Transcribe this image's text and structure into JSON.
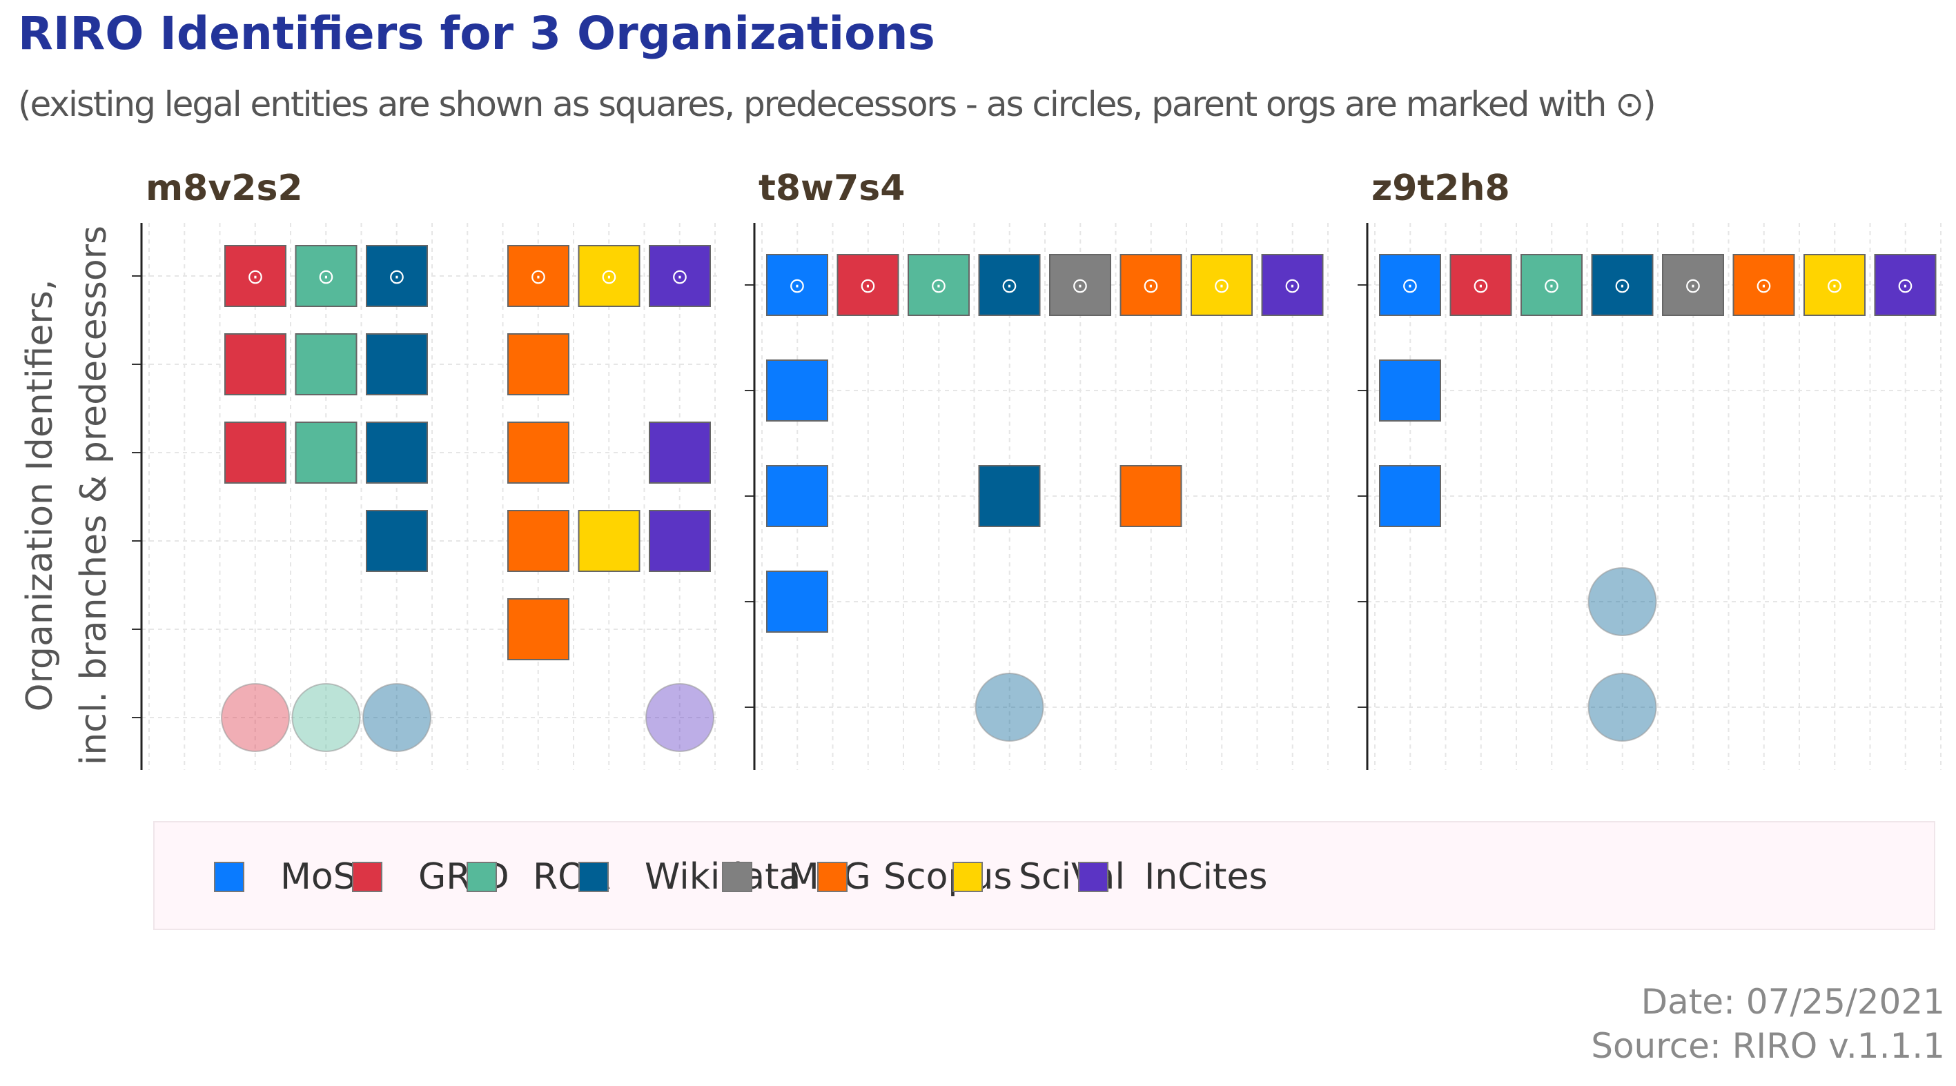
{
  "title": "RIRO Identifiers for 3 Organizations",
  "subtitle": "(existing legal entities are shown as squares, predecessors - as circles, parent orgs are marked with ⊙)",
  "ylabel_line1": "Organization Identifiers,",
  "ylabel_line2": "incl. branches & predecessors",
  "caption_date": "Date: 07/25/2021",
  "caption_source": "Source: RIRO v.1.1.1",
  "parent_marker": "⊙",
  "colors": {
    "MoS": "#0a7bff",
    "GRID": "#dc3545",
    "ROR": "#56b99a",
    "Wikidata": "#005f93",
    "MAG": "#808080",
    "Scopus": "#ff6a00",
    "SciVal": "#ffd400",
    "InCites": "#5b34c4"
  },
  "legend": [
    "MoS",
    "GRID",
    "ROR",
    "Wikidata",
    "MAG",
    "Scopus",
    "SciVal",
    "InCites"
  ],
  "chart_data": {
    "type": "scatter",
    "x_categories": [
      "MoS",
      "GRID",
      "ROR",
      "Wikidata",
      "MAG",
      "Scopus",
      "SciVal",
      "InCites"
    ],
    "grid": true,
    "panels": [
      {
        "title": "m8v2s2",
        "rows": 6,
        "points": [
          {
            "source": "GRID",
            "row": 1,
            "shape": "square",
            "parent": true
          },
          {
            "source": "ROR",
            "row": 1,
            "shape": "square",
            "parent": true
          },
          {
            "source": "Wikidata",
            "row": 1,
            "shape": "square",
            "parent": true
          },
          {
            "source": "Scopus",
            "row": 1,
            "shape": "square",
            "parent": true
          },
          {
            "source": "SciVal",
            "row": 1,
            "shape": "square",
            "parent": true
          },
          {
            "source": "InCites",
            "row": 1,
            "shape": "square",
            "parent": true
          },
          {
            "source": "GRID",
            "row": 2,
            "shape": "square",
            "parent": false
          },
          {
            "source": "ROR",
            "row": 2,
            "shape": "square",
            "parent": false
          },
          {
            "source": "Wikidata",
            "row": 2,
            "shape": "square",
            "parent": false
          },
          {
            "source": "Scopus",
            "row": 2,
            "shape": "square",
            "parent": false
          },
          {
            "source": "GRID",
            "row": 3,
            "shape": "square",
            "parent": false
          },
          {
            "source": "ROR",
            "row": 3,
            "shape": "square",
            "parent": false
          },
          {
            "source": "Wikidata",
            "row": 3,
            "shape": "square",
            "parent": false
          },
          {
            "source": "Scopus",
            "row": 3,
            "shape": "square",
            "parent": false
          },
          {
            "source": "InCites",
            "row": 3,
            "shape": "square",
            "parent": false
          },
          {
            "source": "Wikidata",
            "row": 4,
            "shape": "square",
            "parent": false
          },
          {
            "source": "Scopus",
            "row": 4,
            "shape": "square",
            "parent": false
          },
          {
            "source": "SciVal",
            "row": 4,
            "shape": "square",
            "parent": false
          },
          {
            "source": "InCites",
            "row": 4,
            "shape": "square",
            "parent": false
          },
          {
            "source": "Scopus",
            "row": 5,
            "shape": "square",
            "parent": false
          },
          {
            "source": "GRID",
            "row": 6,
            "shape": "circle",
            "parent": false
          },
          {
            "source": "ROR",
            "row": 6,
            "shape": "circle",
            "parent": false
          },
          {
            "source": "Wikidata",
            "row": 6,
            "shape": "circle",
            "parent": false
          },
          {
            "source": "InCites",
            "row": 6,
            "shape": "circle",
            "parent": false
          }
        ]
      },
      {
        "title": "t8w7s4",
        "rows": 5,
        "points": [
          {
            "source": "MoS",
            "row": 1,
            "shape": "square",
            "parent": true
          },
          {
            "source": "GRID",
            "row": 1,
            "shape": "square",
            "parent": true
          },
          {
            "source": "ROR",
            "row": 1,
            "shape": "square",
            "parent": true
          },
          {
            "source": "Wikidata",
            "row": 1,
            "shape": "square",
            "parent": true
          },
          {
            "source": "MAG",
            "row": 1,
            "shape": "square",
            "parent": true
          },
          {
            "source": "Scopus",
            "row": 1,
            "shape": "square",
            "parent": true
          },
          {
            "source": "SciVal",
            "row": 1,
            "shape": "square",
            "parent": true
          },
          {
            "source": "InCites",
            "row": 1,
            "shape": "square",
            "parent": true
          },
          {
            "source": "MoS",
            "row": 2,
            "shape": "square",
            "parent": false
          },
          {
            "source": "MoS",
            "row": 3,
            "shape": "square",
            "parent": false
          },
          {
            "source": "Wikidata",
            "row": 3,
            "shape": "square",
            "parent": false
          },
          {
            "source": "Scopus",
            "row": 3,
            "shape": "square",
            "parent": false
          },
          {
            "source": "MoS",
            "row": 4,
            "shape": "square",
            "parent": false
          },
          {
            "source": "Wikidata",
            "row": 5,
            "shape": "circle",
            "parent": false
          }
        ]
      },
      {
        "title": "z9t2h8",
        "rows": 5,
        "points": [
          {
            "source": "MoS",
            "row": 1,
            "shape": "square",
            "parent": true
          },
          {
            "source": "GRID",
            "row": 1,
            "shape": "square",
            "parent": true
          },
          {
            "source": "ROR",
            "row": 1,
            "shape": "square",
            "parent": true
          },
          {
            "source": "Wikidata",
            "row": 1,
            "shape": "square",
            "parent": true
          },
          {
            "source": "MAG",
            "row": 1,
            "shape": "square",
            "parent": true
          },
          {
            "source": "Scopus",
            "row": 1,
            "shape": "square",
            "parent": true
          },
          {
            "source": "SciVal",
            "row": 1,
            "shape": "square",
            "parent": true
          },
          {
            "source": "InCites",
            "row": 1,
            "shape": "square",
            "parent": true
          },
          {
            "source": "MoS",
            "row": 2,
            "shape": "square",
            "parent": false
          },
          {
            "source": "MoS",
            "row": 3,
            "shape": "square",
            "parent": false
          },
          {
            "source": "Wikidata",
            "row": 4,
            "shape": "circle",
            "parent": false
          },
          {
            "source": "Wikidata",
            "row": 5,
            "shape": "circle",
            "parent": false
          }
        ]
      }
    ]
  }
}
